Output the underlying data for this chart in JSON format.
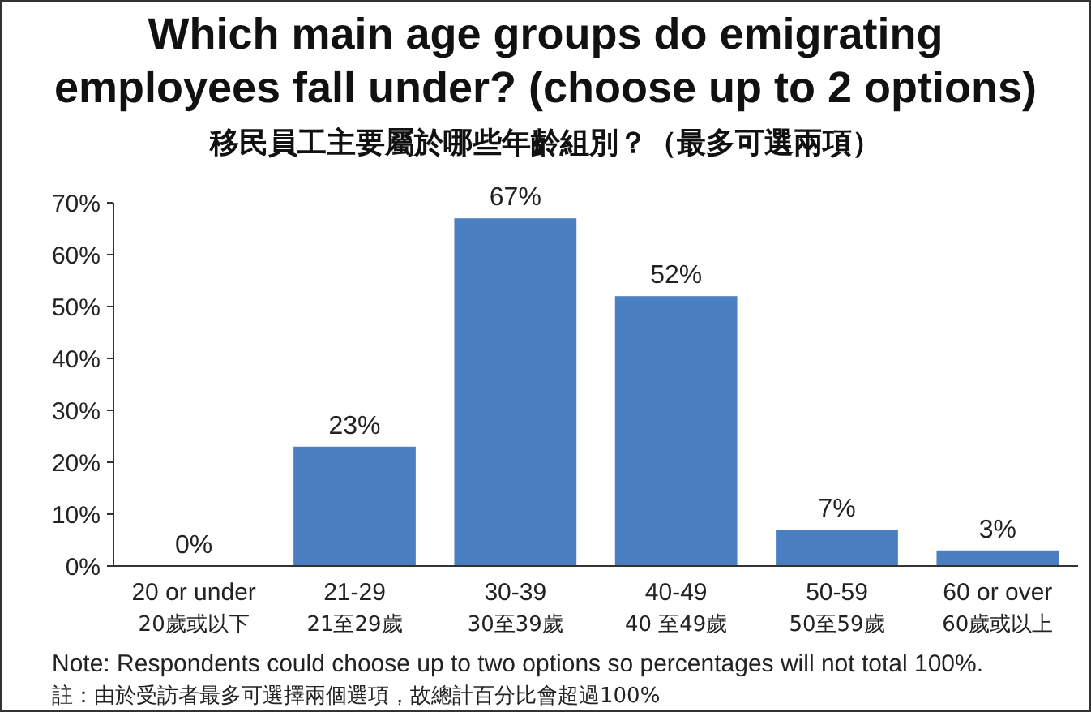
{
  "chart_data": {
    "type": "bar",
    "title": "Which main age groups do emigrating employees fall under? (choose up to 2 options)",
    "subtitle": "移民員工主要屬於哪些年齡組別？（最多可選兩項）",
    "categories": [
      "20 or under\n20歲或以下",
      "21-29\n21至29歲",
      "30-39\n30至39歲",
      "40-49\n40 至49歲",
      "50-59\n50至59歲",
      "60 or over\n60歲或以上"
    ],
    "values": [
      0,
      23,
      67,
      52,
      7,
      3
    ],
    "value_labels": [
      "0%",
      "23%",
      "67%",
      "52%",
      "7%",
      "3%"
    ],
    "color": "#4a7fc1",
    "ylim": [
      0,
      70
    ],
    "yticks": [
      {
        "value": 0,
        "label": "0%"
      },
      {
        "value": 10,
        "label": "10%"
      },
      {
        "value": 20,
        "label": "20%"
      },
      {
        "value": 30,
        "label": "30%"
      },
      {
        "value": 40,
        "label": "40%"
      },
      {
        "value": 50,
        "label": "50%"
      },
      {
        "value": 60,
        "label": "60%"
      },
      {
        "value": 70,
        "label": "70%"
      }
    ],
    "grid": false,
    "annotations": [
      "Note: Respondents could choose up to two options so percentages will not total 100%.",
      "註：由於受訪者最多可選擇兩個選項，故總計百分比會超過100%"
    ]
  }
}
